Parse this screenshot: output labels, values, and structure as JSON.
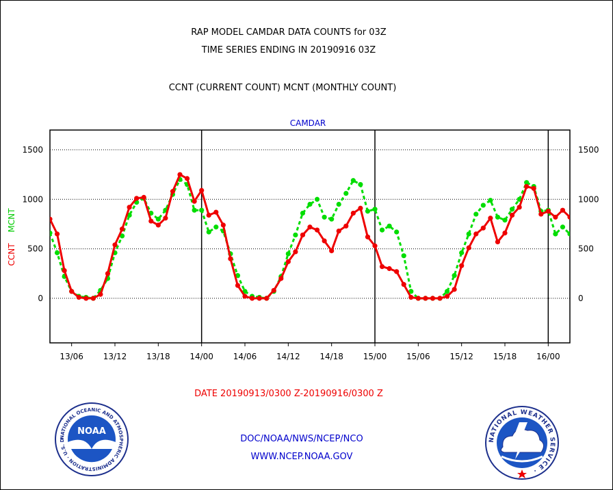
{
  "header": {
    "title_line1": "RAP MODEL CAMDAR DATA COUNTS for 03Z",
    "title_line2": "TIME SERIES ENDING IN 20190916 03Z",
    "subtitle": "CCNT (CURRENT COUNT) MCNT (MONTHLY COUNT)"
  },
  "footer": {
    "date_range": "DATE 20190913/0300 Z-20190916/0300 Z",
    "org_line": "DOC/NOAA/NWS/NCEP/NCO",
    "url_line": "WWW.NCEP.NOAA.GOV"
  },
  "logos": {
    "noaa_text": "NOAA",
    "noaa_ring": "NATIONAL OCEANIC AND ATMOSPHERIC ADMINISTRATION · U.S. DEPARTMENT OF COMMERCE ·",
    "nws_ring": "NATIONAL WEATHER SERVICE ·"
  },
  "colors": {
    "ccnt": "#ee0000",
    "mcnt": "#00dd00",
    "label_blue": "#0000cc",
    "red_text": "#ee0000"
  },
  "chart_data": {
    "type": "line",
    "title": "CAMDAR",
    "ylabel_ccnt": "CCNT",
    "ylabel_mcnt": "MCNT",
    "ylim": [
      -450,
      1700
    ],
    "yticks": [
      0,
      500,
      1000,
      1500
    ],
    "xlim": [
      0,
      72
    ],
    "x_tick_positions": [
      3,
      9,
      15,
      21,
      27,
      33,
      39,
      45,
      51,
      57,
      63,
      69
    ],
    "x_tick_labels": [
      "13/06",
      "13/12",
      "13/18",
      "14/00",
      "14/06",
      "14/12",
      "14/18",
      "15/00",
      "15/06",
      "15/12",
      "15/18",
      "16/00"
    ],
    "day_boundaries": [
      21,
      45,
      69
    ],
    "grid": "horizontal-dotted",
    "series": [
      {
        "name": "CCNT",
        "x": [
          0,
          1,
          2,
          3,
          4,
          5,
          6,
          7,
          8,
          9,
          10,
          11,
          12,
          13,
          14,
          15,
          16,
          17,
          18,
          19,
          20,
          21,
          22,
          23,
          24,
          25,
          26,
          27,
          28,
          29,
          30,
          31,
          32,
          33,
          34,
          35,
          36,
          37,
          38,
          39,
          40,
          41,
          42,
          43,
          44,
          45,
          46,
          47,
          48,
          49,
          50,
          51,
          52,
          53,
          54,
          55,
          56,
          57,
          58,
          59,
          60,
          61,
          62,
          63,
          64,
          65,
          66,
          67,
          68,
          69,
          70,
          71,
          72
        ],
        "values": [
          800,
          650,
          280,
          70,
          10,
          0,
          0,
          40,
          250,
          540,
          700,
          920,
          1010,
          1020,
          780,
          740,
          810,
          1080,
          1250,
          1210,
          980,
          1090,
          840,
          870,
          740,
          400,
          130,
          20,
          0,
          0,
          0,
          80,
          200,
          370,
          470,
          640,
          720,
          690,
          580,
          480,
          680,
          730,
          860,
          910,
          620,
          530,
          320,
          300,
          270,
          140,
          10,
          0,
          0,
          0,
          0,
          20,
          90,
          330,
          510,
          650,
          710,
          810,
          570,
          660,
          840,
          920,
          1130,
          1110,
          850,
          880,
          820,
          890,
          820
        ]
      },
      {
        "name": "MCNT",
        "x": [
          0,
          1,
          2,
          3,
          4,
          5,
          6,
          7,
          8,
          9,
          10,
          11,
          12,
          13,
          14,
          15,
          16,
          17,
          18,
          19,
          20,
          21,
          22,
          23,
          24,
          25,
          26,
          27,
          28,
          29,
          30,
          31,
          32,
          33,
          34,
          35,
          36,
          37,
          38,
          39,
          40,
          41,
          42,
          43,
          44,
          45,
          46,
          47,
          48,
          49,
          50,
          51,
          52,
          53,
          54,
          55,
          56,
          57,
          58,
          59,
          60,
          61,
          62,
          63,
          64,
          65,
          66,
          67,
          68,
          69,
          70,
          71,
          72
        ],
        "values": [
          660,
          460,
          220,
          70,
          20,
          10,
          0,
          80,
          200,
          460,
          630,
          840,
          970,
          1010,
          860,
          800,
          890,
          1050,
          1200,
          1150,
          890,
          890,
          670,
          720,
          680,
          450,
          230,
          70,
          20,
          10,
          0,
          70,
          220,
          450,
          640,
          860,
          950,
          1000,
          820,
          800,
          950,
          1060,
          1190,
          1150,
          880,
          900,
          690,
          730,
          670,
          430,
          70,
          0,
          0,
          0,
          0,
          70,
          230,
          460,
          650,
          850,
          940,
          990,
          820,
          790,
          900,
          1000,
          1170,
          1130,
          880,
          890,
          650,
          720,
          650
        ]
      }
    ]
  }
}
